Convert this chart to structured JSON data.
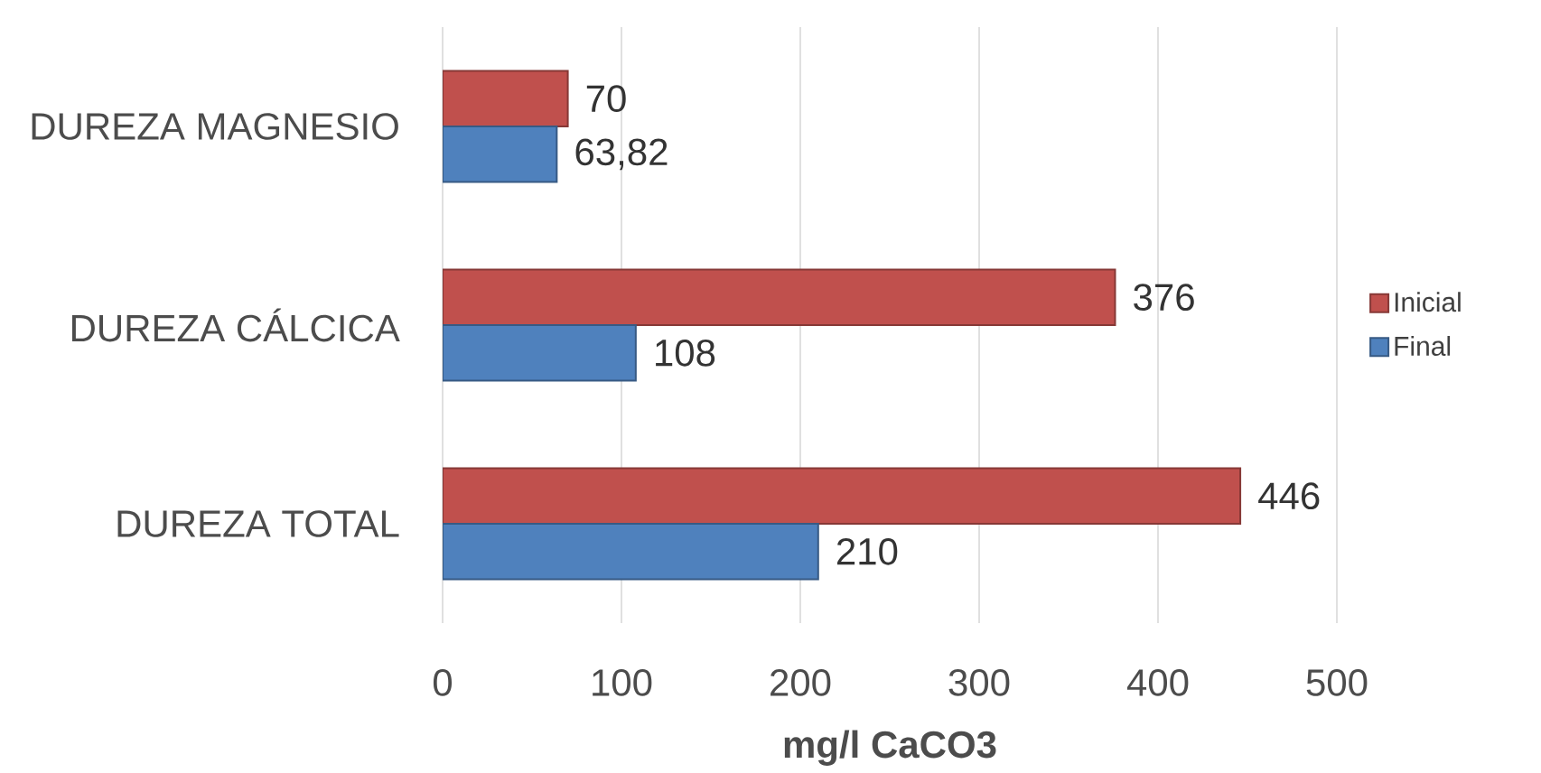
{
  "chart_data": {
    "type": "bar",
    "orientation": "horizontal",
    "xlabel": "mg/l CaCO3",
    "categories": [
      "DUREZA MAGNESIO",
      "DUREZA CÁLCICA",
      "DUREZA TOTAL"
    ],
    "series": [
      {
        "name": "Inicial",
        "color": "#c0504d",
        "values": [
          70,
          376,
          446
        ],
        "value_labels": [
          "70",
          "376",
          "446"
        ]
      },
      {
        "name": "Final",
        "color": "#4f81bd",
        "values": [
          63.82,
          108,
          210
        ],
        "value_labels": [
          "63,82",
          "108",
          "210"
        ]
      }
    ],
    "xlim": [
      0,
      500
    ],
    "xticks": [
      0,
      100,
      200,
      300,
      400,
      500
    ],
    "grid": "x",
    "legend": "right"
  }
}
